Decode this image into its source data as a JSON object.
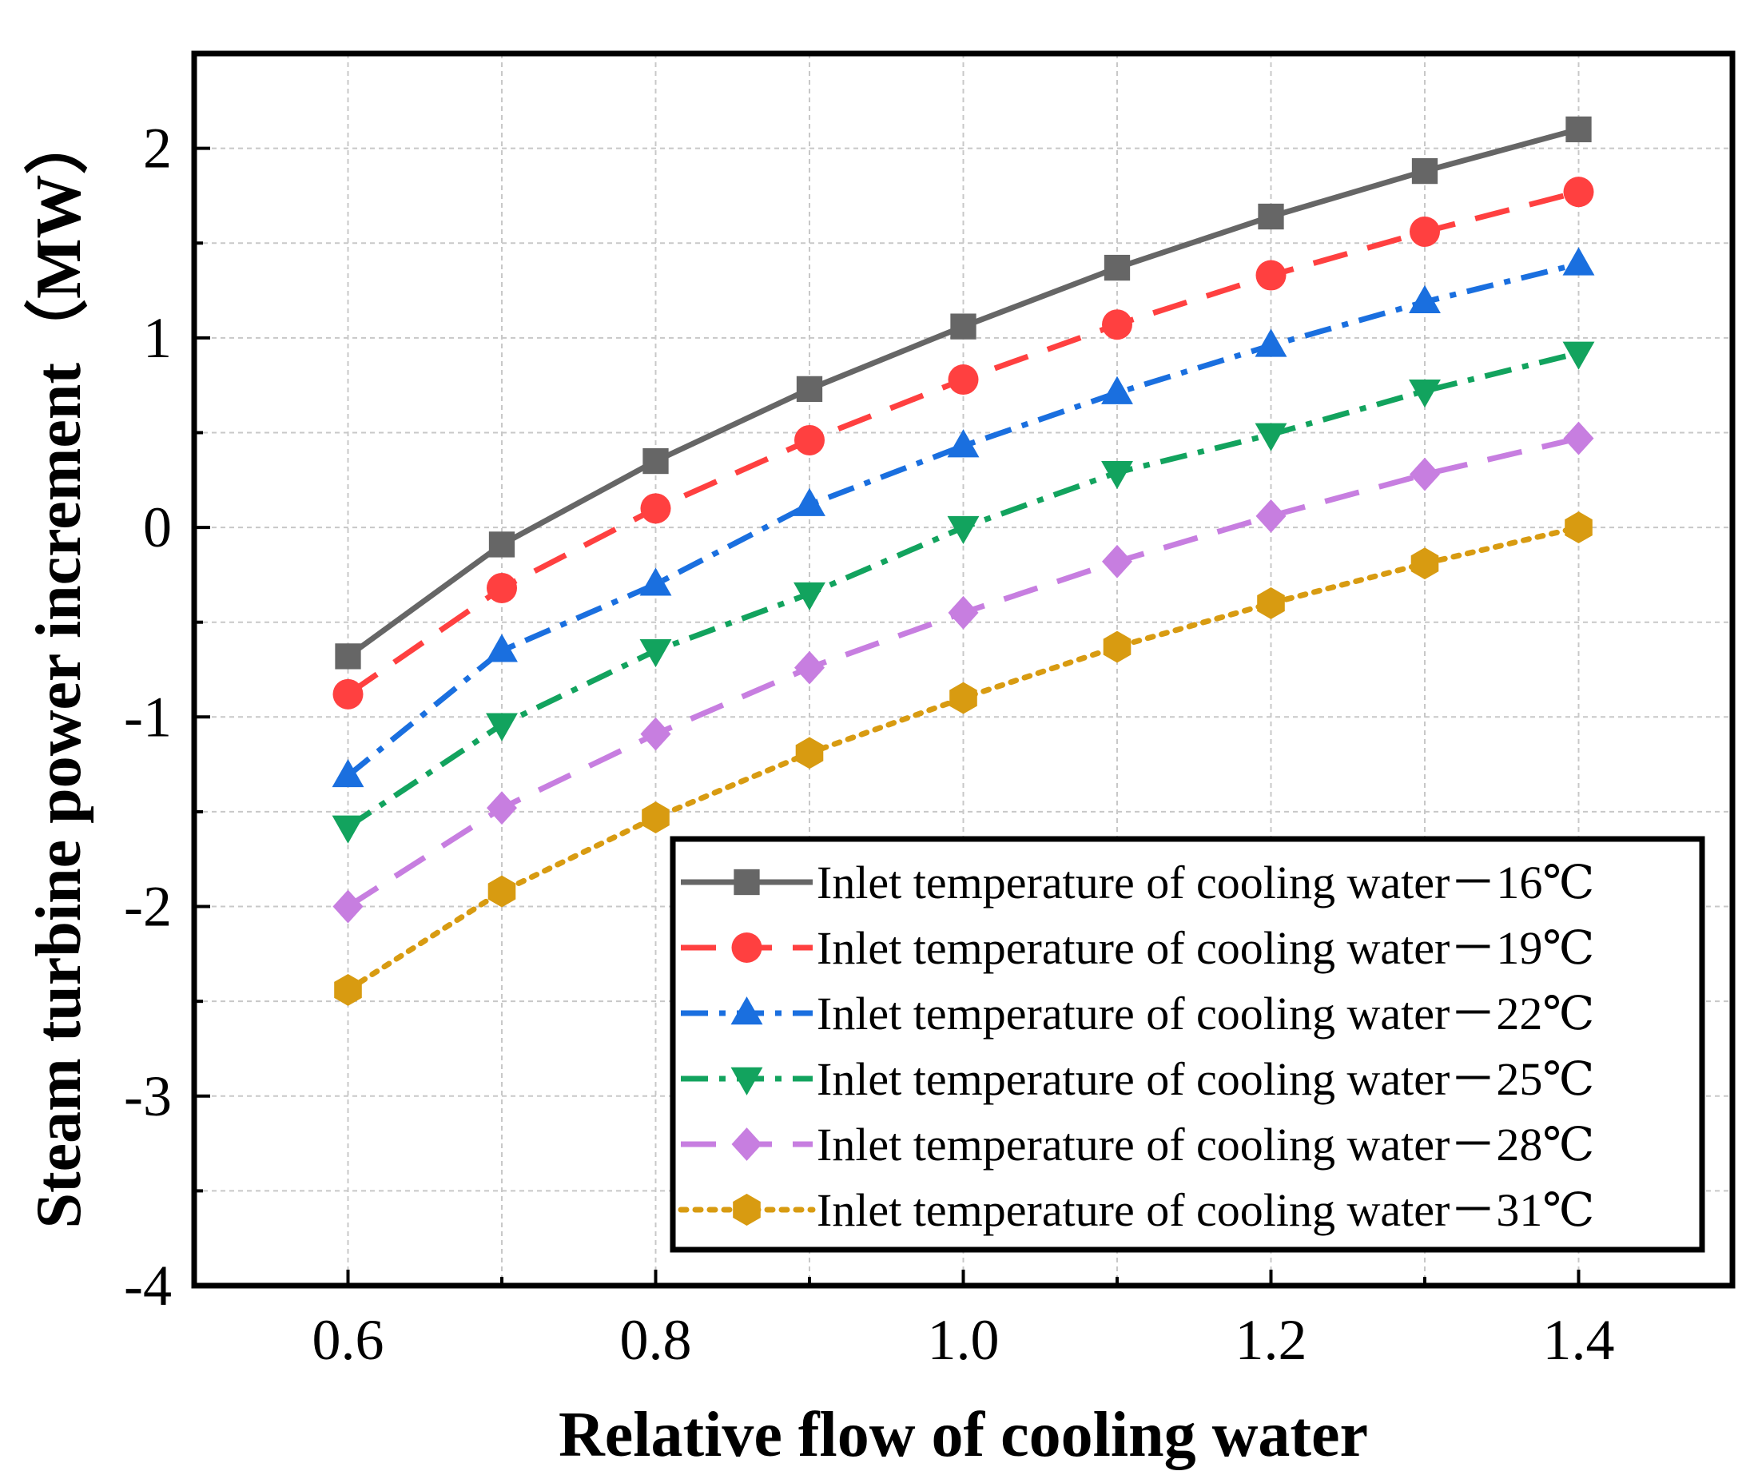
{
  "chart_data": {
    "type": "line",
    "title": "",
    "xlabel": "Relative flow of cooling water",
    "ylabel": "Steam turbine power increment（MW）",
    "xlim": [
      0.5,
      1.5
    ],
    "ylim": [
      -4,
      2.5
    ],
    "xticks": [
      0.6,
      0.8,
      1.0,
      1.2,
      1.4
    ],
    "xtick_labels": [
      "0.6",
      "0.8",
      "1.0",
      "1.2",
      "1.4"
    ],
    "yticks": [
      -4,
      -3,
      -2,
      -1,
      0,
      1,
      2
    ],
    "ytick_labels": [
      "-4",
      "-3",
      "-2",
      "-1",
      "0",
      "1",
      "2"
    ],
    "grid": true,
    "legend_position": "bottom-right",
    "x": [
      0.6,
      0.7,
      0.8,
      0.9,
      1.0,
      1.1,
      1.2,
      1.3,
      1.4
    ],
    "series": [
      {
        "name": "Inlet temperature of cooling water－16℃",
        "color": "#666666",
        "marker": "square",
        "dash": "solid",
        "values": [
          -0.68,
          -0.09,
          0.35,
          0.73,
          1.06,
          1.37,
          1.64,
          1.88,
          2.1
        ]
      },
      {
        "name": "Inlet temperature of cooling water－19℃",
        "color": "#ff4040",
        "marker": "circle",
        "dash": "dash",
        "values": [
          -0.88,
          -0.32,
          0.1,
          0.46,
          0.78,
          1.07,
          1.33,
          1.56,
          1.77
        ]
      },
      {
        "name": "Inlet temperature of cooling water－22℃",
        "color": "#1a6fdf",
        "marker": "triangle-up",
        "dash": "dashdot",
        "values": [
          -1.31,
          -0.65,
          -0.3,
          0.12,
          0.43,
          0.71,
          0.96,
          1.19,
          1.39
        ]
      },
      {
        "name": "Inlet temperature of cooling water－25℃",
        "color": "#12a35e",
        "marker": "triangle-down",
        "dash": "dashdot",
        "values": [
          -1.58,
          -1.04,
          -0.65,
          -0.35,
          0.0,
          0.29,
          0.49,
          0.72,
          0.92
        ]
      },
      {
        "name": "Inlet temperature of cooling water－28℃",
        "color": "#c77ee0",
        "marker": "diamond",
        "dash": "dash",
        "values": [
          -2.0,
          -1.48,
          -1.09,
          -0.74,
          -0.45,
          -0.18,
          0.06,
          0.28,
          0.47
        ]
      },
      {
        "name": "Inlet temperature of cooling water－31℃",
        "color": "#d89b11",
        "marker": "hexagon",
        "dash": "dot",
        "values": [
          -2.44,
          -1.92,
          -1.53,
          -1.19,
          -0.9,
          -0.63,
          -0.4,
          -0.19,
          0.0
        ]
      }
    ]
  }
}
